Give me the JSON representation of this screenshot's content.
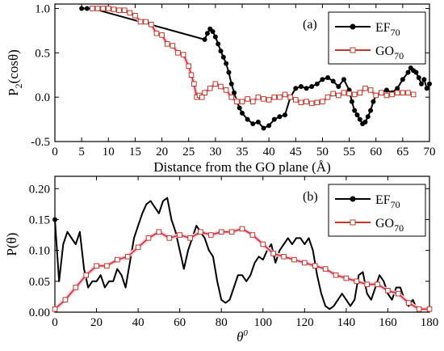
{
  "chart_data": [
    {
      "type": "line",
      "panel_label": "(a)",
      "xlabel": "Distance from the GO plane (Å)",
      "ylabel": "P₂(cosθ)",
      "ylabel_main": "P",
      "ylabel_sub": "2",
      "ylabel_rest": "(cosθ)",
      "xlim": [
        0,
        70
      ],
      "ylim": [
        -0.5,
        1.05
      ],
      "xticks": [
        0,
        5,
        10,
        15,
        20,
        25,
        30,
        35,
        40,
        45,
        50,
        55,
        60,
        65,
        70
      ],
      "yticks": [
        -0.5,
        0.0,
        0.5,
        1.0
      ],
      "ytick_labels": [
        "-0.5",
        "0.0",
        "0.5",
        "1.0"
      ],
      "legend_position": "top-right",
      "series": [
        {
          "name": "EF70",
          "name_main": "EF",
          "name_sub": "70",
          "color": "#000000",
          "marker": "filled-circle",
          "x": [
            5,
            6,
            7,
            28,
            28.5,
            29,
            29.5,
            30,
            30.5,
            31,
            31.5,
            32,
            32.5,
            33,
            33.5,
            34,
            34.5,
            35,
            36,
            37,
            38,
            39,
            40,
            41,
            42,
            43,
            44,
            45,
            46,
            47,
            48,
            49,
            50,
            51,
            52,
            53,
            54,
            55,
            55.5,
            56,
            56.5,
            57,
            57.5,
            58,
            58.5,
            59,
            59.5,
            60,
            61,
            62,
            63,
            64,
            65,
            66,
            66.5,
            67,
            67.5,
            68,
            68.5,
            69,
            69.5,
            70
          ],
          "y": [
            1.0,
            1.0,
            1.0,
            0.65,
            0.72,
            0.77,
            0.74,
            0.68,
            0.6,
            0.52,
            0.45,
            0.38,
            0.28,
            0.15,
            0.05,
            -0.05,
            -0.12,
            -0.18,
            -0.25,
            -0.3,
            -0.28,
            -0.35,
            -0.32,
            -0.25,
            -0.22,
            -0.2,
            0.0,
            0.1,
            0.12,
            0.1,
            0.12,
            0.15,
            0.2,
            0.22,
            0.18,
            0.12,
            0.2,
            0.08,
            -0.05,
            -0.15,
            -0.2,
            -0.25,
            -0.3,
            -0.28,
            -0.22,
            -0.15,
            -0.05,
            0.02,
            0.05,
            0.08,
            0.05,
            0.1,
            0.2,
            0.28,
            0.33,
            0.3,
            0.28,
            0.22,
            0.15,
            0.2,
            0.1,
            0.15
          ]
        },
        {
          "name": "GO70",
          "name_main": "GO",
          "name_sub": "70",
          "color": "#c0392b",
          "marker": "open-square",
          "x": [
            7,
            8,
            9,
            10,
            11,
            12,
            13,
            14,
            15,
            16,
            17,
            18,
            19,
            20,
            21,
            22,
            23,
            24,
            25,
            25.5,
            26,
            26.5,
            27,
            27.5,
            28,
            29,
            30,
            31,
            32,
            33,
            34,
            35,
            36,
            37,
            38,
            39,
            40,
            41,
            42,
            43,
            44,
            45,
            46,
            47,
            48,
            49,
            50,
            51,
            52,
            53,
            54,
            55,
            56,
            57,
            58,
            59,
            60,
            61,
            62,
            63,
            64,
            65,
            66,
            67
          ],
          "y": [
            1.0,
            1.0,
            1.0,
            1.0,
            0.99,
            0.98,
            0.98,
            0.95,
            0.92,
            0.85,
            0.85,
            0.82,
            0.72,
            0.7,
            0.6,
            0.58,
            0.5,
            0.48,
            0.35,
            0.25,
            0.15,
            0.0,
            0.02,
            0.0,
            0.05,
            0.1,
            0.15,
            0.12,
            0.08,
            0.0,
            -0.05,
            -0.05,
            -0.02,
            -0.05,
            0.0,
            -0.02,
            -0.03,
            0.0,
            0.0,
            0.03,
            0.0,
            -0.03,
            -0.06,
            -0.05,
            -0.07,
            -0.06,
            -0.05,
            0.0,
            0.04,
            0.02,
            0.05,
            0.04,
            0.03,
            0.05,
            0.1,
            0.08,
            0.02,
            0.05,
            0.02,
            0.03,
            0.05,
            0.05,
            0.05,
            0.03
          ]
        }
      ]
    },
    {
      "type": "line",
      "panel_label": "(b)",
      "xlabel": "θ",
      "xlabel_main": "θ",
      "xlabel_sup": "0",
      "ylabel": "P(θ)",
      "xlim": [
        0,
        180
      ],
      "ylim": [
        0,
        0.22
      ],
      "xticks": [
        0,
        20,
        40,
        60,
        80,
        100,
        120,
        140,
        160,
        180
      ],
      "yticks": [
        0.0,
        0.05,
        0.1,
        0.15,
        0.2
      ],
      "ytick_labels": [
        "0.00",
        "0.05",
        "0.10",
        "0.15",
        "0.20"
      ],
      "legend_position": "top-right",
      "series": [
        {
          "name": "EF70",
          "name_main": "EF",
          "name_sub": "70",
          "color": "#000000",
          "marker": "filled-circle",
          "marker_points": [
            0,
            180
          ],
          "x": [
            0,
            2,
            4,
            6,
            8,
            10,
            12,
            14,
            16,
            18,
            20,
            22,
            24,
            26,
            28,
            30,
            32,
            34,
            36,
            38,
            40,
            42,
            44,
            46,
            48,
            50,
            52,
            54,
            56,
            58,
            60,
            62,
            64,
            66,
            68,
            70,
            72,
            74,
            76,
            78,
            80,
            82,
            84,
            86,
            88,
            90,
            92,
            94,
            96,
            98,
            100,
            102,
            104,
            106,
            108,
            110,
            112,
            114,
            116,
            118,
            120,
            122,
            124,
            126,
            128,
            130,
            132,
            134,
            136,
            138,
            140,
            142,
            144,
            146,
            148,
            150,
            152,
            154,
            156,
            158,
            160,
            162,
            164,
            166,
            168,
            170,
            172,
            174,
            176,
            178,
            180
          ],
          "y": [
            0.15,
            0.05,
            0.11,
            0.13,
            0.12,
            0.11,
            0.13,
            0.07,
            0.04,
            0.05,
            0.05,
            0.06,
            0.04,
            0.05,
            0.05,
            0.07,
            0.06,
            0.04,
            0.08,
            0.12,
            0.14,
            0.16,
            0.175,
            0.18,
            0.17,
            0.16,
            0.18,
            0.185,
            0.15,
            0.13,
            0.1,
            0.07,
            0.1,
            0.12,
            0.14,
            0.13,
            0.12,
            0.1,
            0.09,
            0.05,
            0.02,
            0.015,
            0.02,
            0.04,
            0.06,
            0.06,
            0.05,
            0.06,
            0.08,
            0.09,
            0.085,
            0.1,
            0.11,
            0.08,
            0.1,
            0.11,
            0.12,
            0.11,
            0.12,
            0.12,
            0.11,
            0.12,
            0.1,
            0.06,
            0.03,
            0.01,
            0.005,
            0.01,
            0.02,
            0.03,
            0.02,
            0.01,
            0.02,
            0.06,
            0.065,
            0.03,
            0.02,
            0.04,
            0.06,
            0.05,
            0.03,
            0.02,
            0.04,
            0.04,
            0.02,
            0.01,
            0.02,
            0.005,
            0.005,
            0.005,
            0.005
          ]
        },
        {
          "name": "GO70",
          "name_main": "GO",
          "name_sub": "70",
          "color": "#c0392b",
          "marker": "open-square",
          "x": [
            0,
            5,
            10,
            15,
            20,
            25,
            30,
            35,
            40,
            45,
            50,
            55,
            60,
            65,
            70,
            75,
            80,
            85,
            90,
            95,
            100,
            105,
            110,
            115,
            120,
            125,
            130,
            135,
            140,
            145,
            150,
            155,
            160,
            165,
            170,
            175,
            180
          ],
          "y": [
            0.005,
            0.02,
            0.04,
            0.06,
            0.075,
            0.075,
            0.085,
            0.09,
            0.105,
            0.12,
            0.13,
            0.12,
            0.125,
            0.12,
            0.13,
            0.125,
            0.13,
            0.13,
            0.135,
            0.125,
            0.11,
            0.095,
            0.09,
            0.085,
            0.08,
            0.075,
            0.07,
            0.06,
            0.055,
            0.05,
            0.045,
            0.045,
            0.035,
            0.03,
            0.015,
            0.005,
            0.005
          ]
        }
      ]
    }
  ]
}
